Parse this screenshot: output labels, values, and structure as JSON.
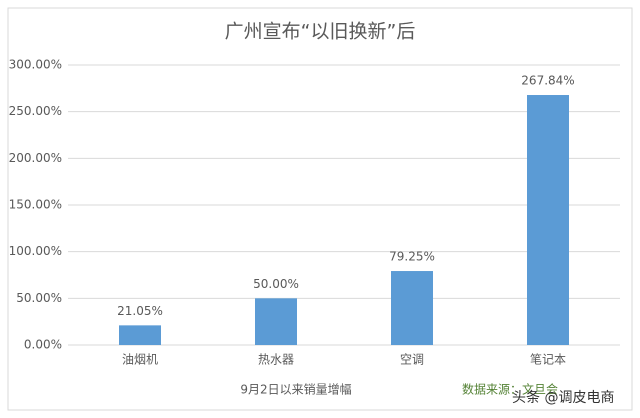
{
  "chart_data": {
    "type": "bar",
    "title": "广州宣布“以旧换新”后",
    "categories": [
      "油烟机",
      "热水器",
      "空调",
      "笔记本"
    ],
    "values": [
      21.05,
      50.0,
      79.25,
      267.84
    ],
    "value_labels": [
      "21.05%",
      "50.00%",
      "79.25%",
      "267.84%"
    ],
    "color": "#5b9bd5",
    "ylim": [
      0,
      300
    ],
    "yticks": [
      {
        "value": 0,
        "label": "0.00%"
      },
      {
        "value": 50,
        "label": "50.00%"
      },
      {
        "value": 100,
        "label": "100.00%"
      },
      {
        "value": 150,
        "label": "150.00%"
      },
      {
        "value": 200,
        "label": "200.00%"
      },
      {
        "value": 250,
        "label": "250.00%"
      },
      {
        "value": 300,
        "label": "300.00%"
      }
    ],
    "grid": true,
    "x_label": "9月2日以来销量增幅",
    "source": "数据来源：文旦会",
    "watermark": "头条 @调皮电商"
  }
}
